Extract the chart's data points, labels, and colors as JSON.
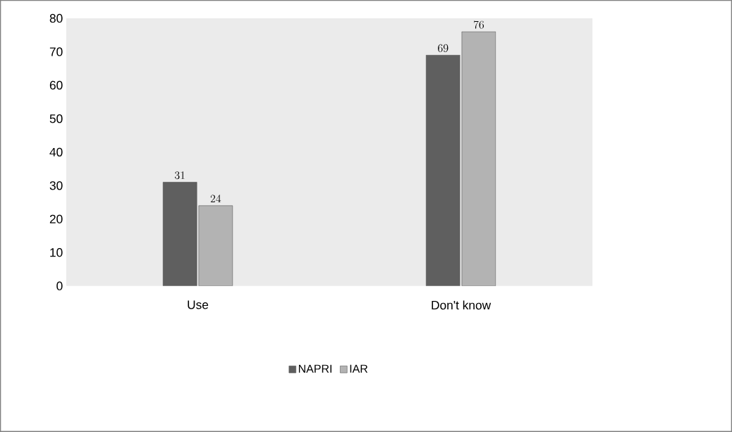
{
  "chart_data": {
    "type": "bar",
    "categories": [
      "Use",
      "Don't know"
    ],
    "series": [
      {
        "name": "NAPRI",
        "color": "#5f5f5f",
        "values": [
          31,
          69
        ]
      },
      {
        "name": "IAR",
        "color": "#b3b3b3",
        "values": [
          24,
          76
        ]
      }
    ],
    "ylim": [
      0,
      80
    ],
    "yticks": [
      0,
      10,
      20,
      30,
      40,
      50,
      60,
      70,
      80
    ],
    "data_labels": true,
    "legend": "bottom",
    "grid": false
  }
}
